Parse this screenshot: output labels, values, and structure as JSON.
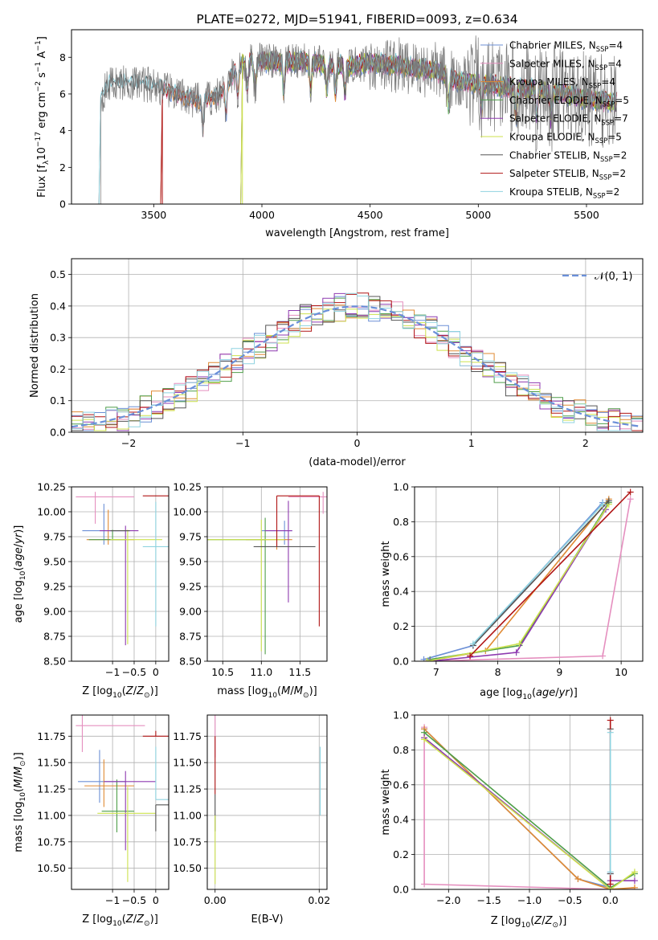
{
  "suptitle": "PLATE=0272, MJD=51941, FIBERID=0093, z=0.634",
  "colors": {
    "Chabrier MILES": "#6b8fd6",
    "Salpeter MILES": "#e58fbf",
    "Kroupa MILES": "#e08a33",
    "Chabrier ELODIE": "#4f9e4a",
    "Salpeter ELODIE": "#8e3ab0",
    "Kroupa ELODIE": "#cde24e",
    "Chabrier STELIB": "#555555",
    "Salpeter STELIB": "#b01515",
    "Kroupa STELIB": "#8fd3e0",
    "normal": "#6a8fd8"
  },
  "chart_data": [
    {
      "id": "spectrum",
      "type": "line",
      "title": "PLATE=0272, MJD=51941, FIBERID=0093, z=0.634",
      "xlabel": "wavelength [Angstrom, rest frame]",
      "ylabel": "Flux [f_λ10^{-17} erg cm^{-2} s^{-1} A^{-1}]",
      "xlim": [
        3120,
        5760
      ],
      "ylim": [
        0,
        9.5
      ],
      "xticks": [
        3500,
        4000,
        4500,
        5000,
        5500
      ],
      "yticks": [
        0,
        2,
        4,
        6,
        8
      ],
      "grid": false,
      "legend_position": "upper right",
      "series": [
        {
          "name": "Chabrier MILES, N_SSP=4",
          "label": "Chabrier MILES, N",
          "sub": "SSP",
          "suffix": "=4",
          "start": 3540
        },
        {
          "name": "Salpeter MILES, N_SSP=4",
          "label": "Salpeter MILES, N",
          "sub": "SSP",
          "suffix": "=4",
          "start": 3540
        },
        {
          "name": "Kroupa MILES, N_SSP=4",
          "label": "Kroupa MILES, N",
          "sub": "SSP",
          "suffix": "=4",
          "start": 3540
        },
        {
          "name": "Chabrier ELODIE, N_SSP=5",
          "label": "Chabrier ELODIE, N",
          "sub": "SSP",
          "suffix": "=5",
          "start": 3910
        },
        {
          "name": "Salpeter ELODIE, N_SSP=7",
          "label": "Salpeter ELODIE, N",
          "sub": "SSP",
          "suffix": "=7",
          "start": 3910
        },
        {
          "name": "Kroupa ELODIE, N_SSP=5",
          "label": "Kroupa ELODIE, N",
          "sub": "SSP",
          "suffix": "=5",
          "start": 3910
        },
        {
          "name": "Chabrier STELIB, N_SSP=2",
          "label": "Chabrier STELIB, N",
          "sub": "SSP",
          "suffix": "=2",
          "start": 3255
        },
        {
          "name": "Salpeter STELIB, N_SSP=2",
          "label": "Salpeter STELIB, N",
          "sub": "SSP",
          "suffix": "=2",
          "start": 3540
        },
        {
          "name": "Kroupa STELIB, N_SSP=2",
          "label": "Kroupa STELIB, N",
          "sub": "SSP",
          "suffix": "=2",
          "start": 3255
        }
      ],
      "continuum": {
        "x": [
          3240,
          3300,
          3400,
          3500,
          3600,
          3700,
          3800,
          3900,
          3950,
          4000,
          4100,
          4200,
          4300,
          4400,
          4500,
          4600,
          4700,
          4800,
          4900,
          5000,
          5100,
          5200,
          5300,
          5400,
          5500,
          5600,
          5640
        ],
        "y": [
          5.6,
          6.6,
          6.6,
          6.5,
          6.0,
          5.6,
          5.9,
          7.6,
          8.3,
          7.8,
          7.7,
          7.8,
          7.6,
          7.5,
          7.7,
          7.6,
          7.4,
          7.3,
          6.7,
          6.6,
          6.4,
          6.3,
          6.2,
          6.0,
          5.7,
          5.6,
          5.5
        ]
      }
    },
    {
      "id": "residuals",
      "type": "step",
      "xlabel": "(data-model)/error",
      "ylabel": "Normed distribution",
      "xlim": [
        -2.5,
        2.5
      ],
      "ylim": [
        0,
        0.55
      ],
      "xticks": [
        -2,
        -1,
        0,
        1,
        2
      ],
      "yticks": [
        0.0,
        0.1,
        0.2,
        0.3,
        0.4,
        0.5
      ],
      "grid": true,
      "legend_position": "upper right",
      "legend": "𝒩(0, 1)",
      "normal": {
        "mu": 0,
        "sigma": 1
      }
    },
    {
      "id": "age_vs_Z",
      "type": "errorbar",
      "xlabel": "Z [log10(Z/Z⊙)]",
      "ylabel": "age  [log10(age/yr)]",
      "xlim": [
        -1.95,
        0.3
      ],
      "ylim": [
        8.5,
        10.25
      ],
      "xticks": [
        -1,
        -0.5,
        0
      ],
      "xticklabels": [
        "−1",
        "−0.5",
        "0"
      ],
      "yticks": [
        8.5,
        8.75,
        9.0,
        9.25,
        9.5,
        9.75,
        10.0,
        10.25
      ],
      "grid": true
    },
    {
      "id": "age_vs_mass",
      "type": "errorbar",
      "xlabel": "mass [log10(M/M⊙)]",
      "ylabel": "",
      "xlim": [
        10.3,
        11.85
      ],
      "ylim": [
        8.5,
        10.25
      ],
      "xticks": [
        10.5,
        11.0,
        11.5
      ],
      "yticks": [
        8.5,
        8.75,
        9.0,
        9.25,
        9.5,
        9.75,
        10.0,
        10.25
      ],
      "grid": true
    },
    {
      "id": "massweight_vs_age",
      "type": "line",
      "xlabel": "age  [log10(age/yr)]",
      "ylabel": "mass weight",
      "xlim": [
        6.65,
        10.35
      ],
      "ylim": [
        0,
        1.0
      ],
      "xticks": [
        7,
        8,
        9,
        10
      ],
      "yticks": [
        0.0,
        0.2,
        0.4,
        0.6,
        0.8,
        1.0
      ],
      "grid": true,
      "series": [
        {
          "name": "Chabrier MILES",
          "x": [
            6.8,
            7.6,
            9.7
          ],
          "y": [
            0.01,
            0.09,
            0.91
          ]
        },
        {
          "name": "Salpeter MILES",
          "x": [
            6.85,
            9.7,
            10.15
          ],
          "y": [
            0.0,
            0.03,
            0.93
          ]
        },
        {
          "name": "Kroupa MILES",
          "x": [
            6.85,
            7.8,
            9.8
          ],
          "y": [
            0.0,
            0.06,
            0.93
          ]
        },
        {
          "name": "Chabrier ELODIE",
          "x": [
            6.9,
            8.35,
            9.8
          ],
          "y": [
            0.01,
            0.09,
            0.91
          ]
        },
        {
          "name": "Salpeter ELODIE",
          "x": [
            6.9,
            8.3,
            9.75
          ],
          "y": [
            0.0,
            0.05,
            0.87
          ]
        },
        {
          "name": "Kroupa ELODIE",
          "x": [
            6.85,
            8.35,
            9.8
          ],
          "y": [
            0.0,
            0.1,
            0.9
          ]
        },
        {
          "name": "Chabrier STELIB",
          "x": [
            7.6,
            9.8
          ],
          "y": [
            0.09,
            0.92
          ]
        },
        {
          "name": "Salpeter STELIB",
          "x": [
            7.55,
            10.15
          ],
          "y": [
            0.03,
            0.97
          ]
        },
        {
          "name": "Kroupa STELIB",
          "x": [
            7.6,
            9.7
          ],
          "y": [
            0.1,
            0.9
          ]
        }
      ]
    },
    {
      "id": "mass_vs_Z",
      "type": "errorbar",
      "xlabel": "Z [log10(Z/Z⊙)]",
      "ylabel": "mass [log10(M/M⊙)]",
      "xlim": [
        -1.95,
        0.3
      ],
      "ylim": [
        10.3,
        11.95
      ],
      "xticks": [
        -1,
        -0.5,
        0
      ],
      "xticklabels": [
        "−1",
        "−0.5",
        "0"
      ],
      "yticks": [
        10.5,
        10.75,
        11.0,
        11.25,
        11.5,
        11.75
      ],
      "grid": true
    },
    {
      "id": "mass_vs_ebv",
      "type": "errorbar",
      "xlabel": "E(B-V)",
      "ylabel": "",
      "xlim": [
        -0.0015,
        0.0215
      ],
      "ylim": [
        10.3,
        11.95
      ],
      "xticks": [
        0.0,
        0.02
      ],
      "xticklabels": [
        "0.00",
        "0.02"
      ],
      "yticks": [
        10.5,
        10.75,
        11.0,
        11.25,
        11.5,
        11.75
      ],
      "grid": true
    },
    {
      "id": "massweight_vs_Z",
      "type": "line",
      "xlabel": "Z [log10(Z/Z⊙)]",
      "ylabel": "mass weight",
      "xlim": [
        -2.42,
        0.4
      ],
      "ylim": [
        0,
        1.0
      ],
      "xticks": [
        -2.0,
        -1.5,
        -1.0,
        -0.5,
        0.0
      ],
      "xticklabels": [
        "−2.0",
        "−1.5",
        "−1.0",
        "−0.5",
        "0.0"
      ],
      "yticks": [
        0.0,
        0.2,
        0.4,
        0.6,
        0.8,
        1.0
      ],
      "grid": true,
      "series": [
        {
          "name": "Chabrier MILES",
          "x": [
            -2.3,
            -0.4,
            0.0,
            0.0
          ],
          "y": [
            0.92,
            0.06,
            0.01,
            0.09
          ]
        },
        {
          "name": "Salpeter MILES",
          "x": [
            -2.3,
            -2.3,
            0.0,
            0.3
          ],
          "y": [
            0.93,
            0.03,
            0.0,
            0.0
          ]
        },
        {
          "name": "Kroupa MILES",
          "x": [
            -2.3,
            -0.4,
            0.0,
            0.3
          ],
          "y": [
            0.92,
            0.06,
            0.0,
            0.01
          ]
        },
        {
          "name": "Chabrier ELODIE",
          "x": [
            -2.3,
            0.0,
            0.3
          ],
          "y": [
            0.9,
            0.01,
            0.09
          ]
        },
        {
          "name": "Salpeter ELODIE",
          "x": [
            -2.3,
            0.0,
            0.0,
            0.3
          ],
          "y": [
            0.87,
            0.0,
            0.05,
            0.05
          ]
        },
        {
          "name": "Kroupa ELODIE",
          "x": [
            -2.3,
            0.0,
            0.3
          ],
          "y": [
            0.86,
            0.0,
            0.1
          ]
        },
        {
          "name": "Chabrier STELIB",
          "x": [
            0.0,
            0.0
          ],
          "y": [
            0.09,
            0.92
          ]
        },
        {
          "name": "Salpeter STELIB",
          "x": [
            0.0,
            0.0
          ],
          "y": [
            0.03,
            0.97
          ]
        },
        {
          "name": "Kroupa STELIB",
          "x": [
            0.0,
            0.0
          ],
          "y": [
            0.1,
            0.9
          ]
        }
      ]
    }
  ]
}
